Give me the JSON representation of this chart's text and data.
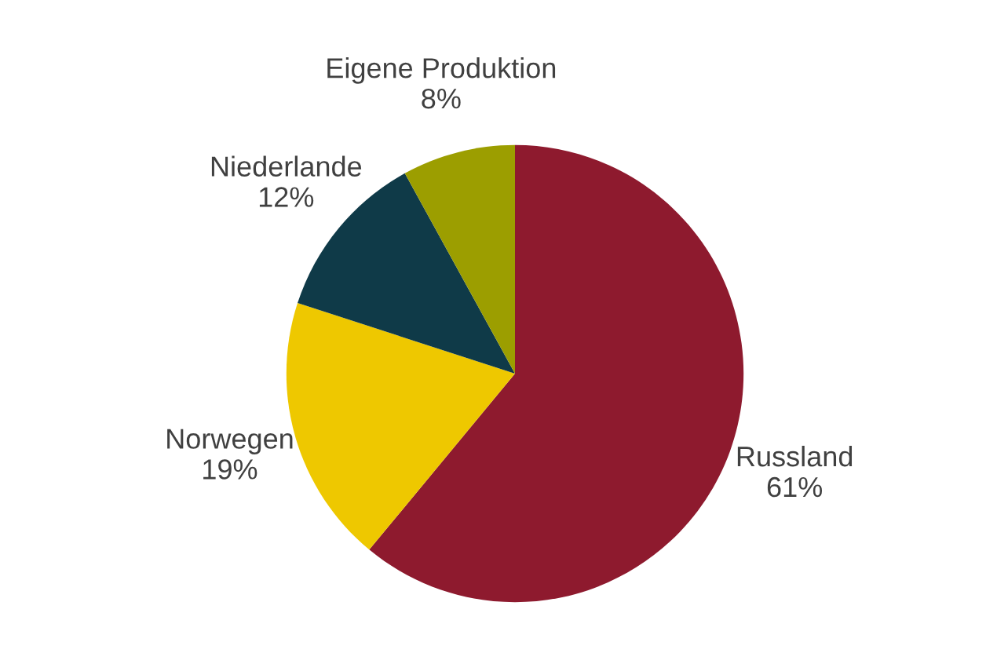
{
  "chart_data": {
    "type": "pie",
    "categories": [
      "Russland",
      "Norwegen",
      "Niederlande",
      "Eigene Produktion"
    ],
    "values": [
      61,
      19,
      12,
      8
    ],
    "value_labels": [
      "61%",
      "19%",
      "12%",
      "8%"
    ],
    "colors": [
      "#8e1a2e",
      "#eec800",
      "#0f3a48",
      "#9c9e00"
    ],
    "legend": false
  }
}
